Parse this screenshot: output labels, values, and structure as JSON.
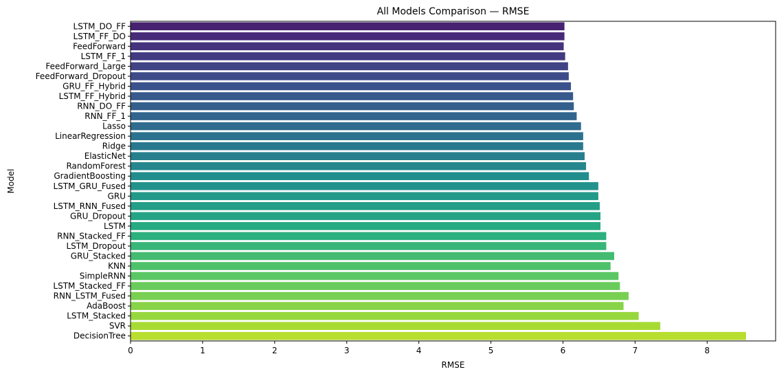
{
  "chart_data": {
    "type": "bar",
    "orientation": "horizontal",
    "title": "All Models Comparison — RMSE",
    "xlabel": "RMSE",
    "ylabel": "Model",
    "xlim": [
      0,
      8.95
    ],
    "xticks": [
      0,
      1,
      2,
      3,
      4,
      5,
      6,
      7,
      8
    ],
    "grid": false,
    "legend": "none",
    "colormap": "viridis",
    "categories": [
      "LSTM_DO_FF",
      "LSTM_FF_DO",
      "FeedForward",
      "LSTM_FF_1",
      "FeedForward_Large",
      "FeedForward_Dropout",
      "GRU_FF_Hybrid",
      "LSTM_FF_Hybrid",
      "RNN_DO_FF",
      "RNN_FF_1",
      "Lasso",
      "LinearRegression",
      "Ridge",
      "ElasticNet",
      "RandomForest",
      "GradientBoosting",
      "LSTM_GRU_Fused",
      "GRU",
      "LSTM_RNN_Fused",
      "GRU_Dropout",
      "LSTM",
      "RNN_Stacked_FF",
      "LSTM_Dropout",
      "GRU_Stacked",
      "KNN",
      "SimpleRNN",
      "LSTM_Stacked_FF",
      "RNN_LSTM_Fused",
      "AdaBoost",
      "LSTM_Stacked",
      "SVR",
      "DecisionTree"
    ],
    "values": [
      6.02,
      6.02,
      6.01,
      6.03,
      6.07,
      6.08,
      6.11,
      6.14,
      6.15,
      6.19,
      6.25,
      6.28,
      6.28,
      6.3,
      6.32,
      6.36,
      6.49,
      6.49,
      6.51,
      6.52,
      6.52,
      6.6,
      6.6,
      6.71,
      6.66,
      6.77,
      6.79,
      6.91,
      6.84,
      7.05,
      7.35,
      8.54
    ]
  }
}
